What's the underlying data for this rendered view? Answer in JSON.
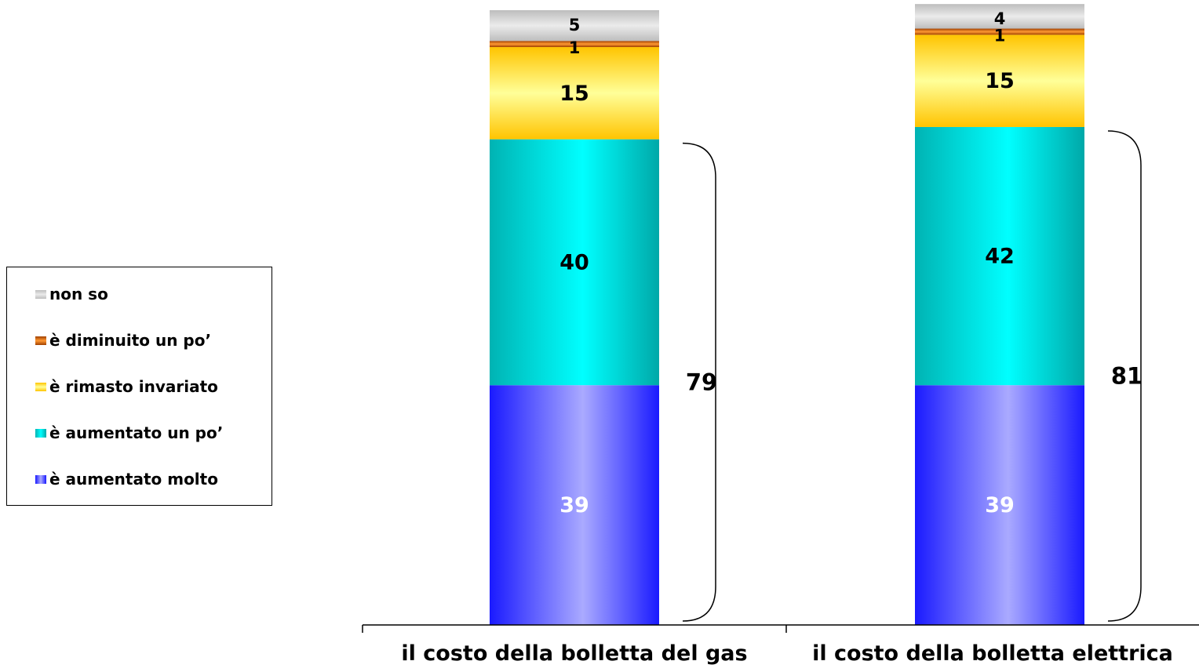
{
  "chart_data": {
    "type": "bar",
    "stacked": true,
    "categories": [
      "il costo della bolletta del gas",
      "il costo della bolletta elettrica"
    ],
    "series": [
      {
        "name": "è aumentato molto",
        "values": [
          39,
          39
        ],
        "color": "#3333ff"
      },
      {
        "name": "è aumentato un po’",
        "values": [
          40,
          42
        ],
        "color": "#00cccc"
      },
      {
        "name": "è rimasto invariato",
        "values": [
          15,
          15
        ],
        "color": "#ffd24d"
      },
      {
        "name": "è diminuito un po’",
        "values": [
          1,
          1
        ],
        "color": "#cc6600"
      },
      {
        "name": "non so",
        "values": [
          5,
          4
        ],
        "color": "#c8c8c8"
      }
    ],
    "brackets": [
      {
        "category": "il costo della bolletta del gas",
        "label": "79"
      },
      {
        "category": "il costo della bolletta elettrica",
        "label": "81"
      }
    ],
    "ylim": [
      0,
      100
    ],
    "grid": false,
    "legend": "left"
  }
}
